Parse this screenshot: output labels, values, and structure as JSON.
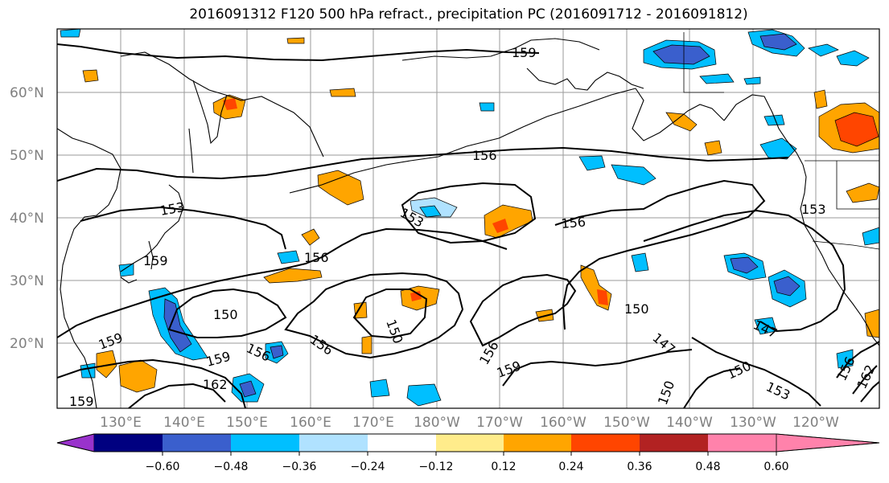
{
  "title": "2016091312 F120 500 hPa refract., precipitation PC (2016091712 - 2016091812)",
  "lat_labels": [
    "60°N",
    "50°N",
    "40°N",
    "30°N",
    "20°N"
  ],
  "lon_labels": [
    "130°E",
    "140°E",
    "150°E",
    "160°E",
    "170°E",
    "180°W",
    "170°W",
    "160°W",
    "150°W",
    "140°W",
    "130°W",
    "120°W"
  ],
  "contour_labels": [
    "159",
    "156",
    "153",
    "156",
    "153",
    "159",
    "156",
    "150",
    "150",
    "156",
    "159",
    "156",
    "150",
    "156",
    "159",
    "150",
    "147",
    "147",
    "150",
    "153",
    "159",
    "162",
    "159",
    "153",
    "156",
    "162"
  ],
  "colorbar": {
    "colors": [
      "#9932CC",
      "#000080",
      "#3A5FCD",
      "#00BFFF",
      "#B0E2FF",
      "#FFFFFF",
      "#FFEC8B",
      "#FFA500",
      "#FF4500",
      "#B22222",
      "#FF82AB"
    ],
    "tick_labels": [
      "−0.60",
      "−0.48",
      "−0.36",
      "−0.24",
      "−0.12",
      "0.12",
      "0.24",
      "0.36",
      "0.48",
      "0.60"
    ]
  }
}
